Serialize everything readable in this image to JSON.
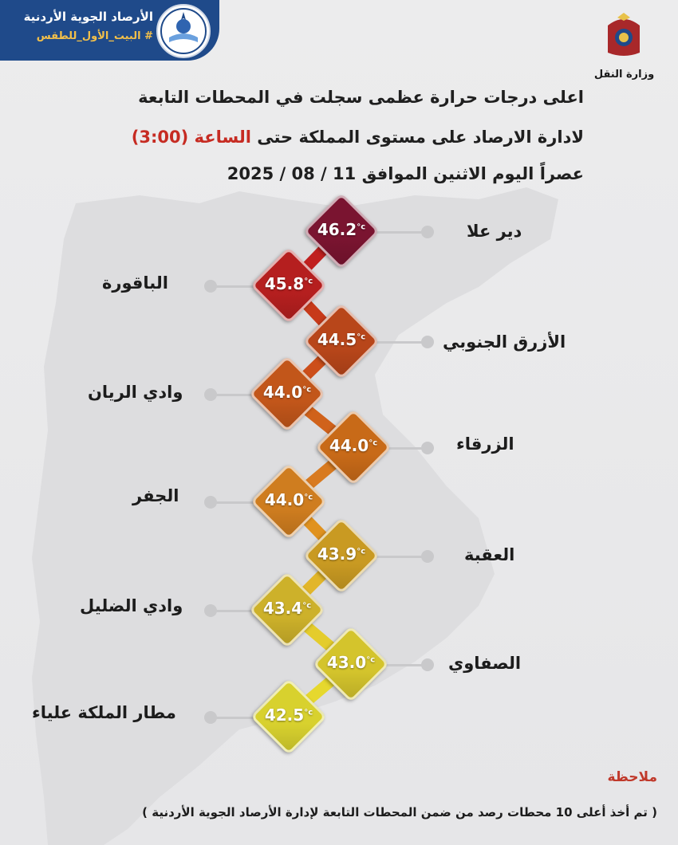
{
  "header": {
    "org_name": "الأرصاد الجوية الأردنية",
    "hashtag": "# البيت_الأول_للطقس",
    "ministry": "وزارة النقل"
  },
  "title": {
    "line1": "اعلى درجات حرارة عظمى سجلت في المحطات التابعة",
    "line2_prefix": "لادارة الارصاد على مستوى المملكة حتى",
    "line2_highlight": "الساعة (3:00)",
    "line3": "عصراً اليوم الاثنين الموافق 11 / 08 / 2025"
  },
  "unit": "°c",
  "stations": [
    {
      "name": "دير علا",
      "temp": "46.2",
      "color": "#7a1430"
    },
    {
      "name": "الباقورة",
      "temp": "45.8",
      "color": "#b51f1f"
    },
    {
      "name": "الأزرق الجنوبي",
      "temp": "44.5",
      "color": "#b8461a"
    },
    {
      "name": "وادي الريان",
      "temp": "44.0",
      "color": "#c2561a"
    },
    {
      "name": "الزرقاء",
      "temp": "44.0",
      "color": "#c86a18"
    },
    {
      "name": "الجفر",
      "temp": "44.0",
      "color": "#cf7d1f"
    },
    {
      "name": "العقبة",
      "temp": "43.9",
      "color": "#c99a22"
    },
    {
      "name": "وادي الضليل",
      "temp": "43.4",
      "color": "#cdb12a"
    },
    {
      "name": "الصفاوي",
      "temp": "43.0",
      "color": "#d4c42c"
    },
    {
      "name": "مطار الملكة علياء",
      "temp": "42.5",
      "color": "#d8d12e"
    }
  ],
  "note": {
    "title": "ملاحظة",
    "text": "( تم أخذ أعلى 10 محطات رصد من ضمن المحطات التابعة لإدارة الأرصاد الجوية الأردنية )"
  }
}
